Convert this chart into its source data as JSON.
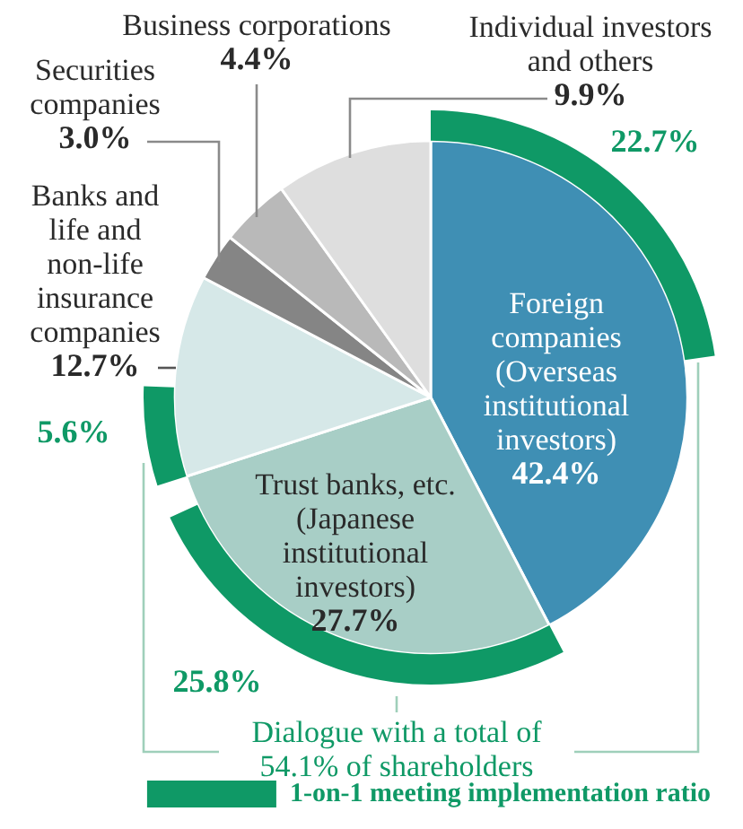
{
  "chart_data": {
    "type": "pie",
    "categories": [
      "Foreign companies (Overseas institutional investors)",
      "Trust banks, etc. (Japanese institutional investors)",
      "Banks and life and non-life insurance companies",
      "Securities companies",
      "Business corporations",
      "Individual investors and others"
    ],
    "series": [
      {
        "values": [
          42.4,
          27.7,
          12.7,
          3.0,
          4.4,
          9.9
        ],
        "colors": [
          "#3f8fb4",
          "#a8cec6",
          "#d6e8e8",
          "#858585",
          "#b9b9b9",
          "#dedede"
        ],
        "value_labels": [
          "42.4%",
          "27.7%",
          "12.7%",
          "3.0%",
          "4.4%",
          "9.9%"
        ]
      },
      {
        "name": "1-on-1 meeting implementation ratio",
        "color": "#0f9966",
        "values": [
          22.7,
          25.8,
          5.6,
          null,
          null,
          null
        ],
        "value_labels": [
          "22.7%",
          "25.8%",
          "5.6%",
          null,
          null,
          null
        ]
      }
    ],
    "legend": "bottom",
    "annotations": [
      "Dialogue with a total of 54.1% of shareholders"
    ]
  }
}
